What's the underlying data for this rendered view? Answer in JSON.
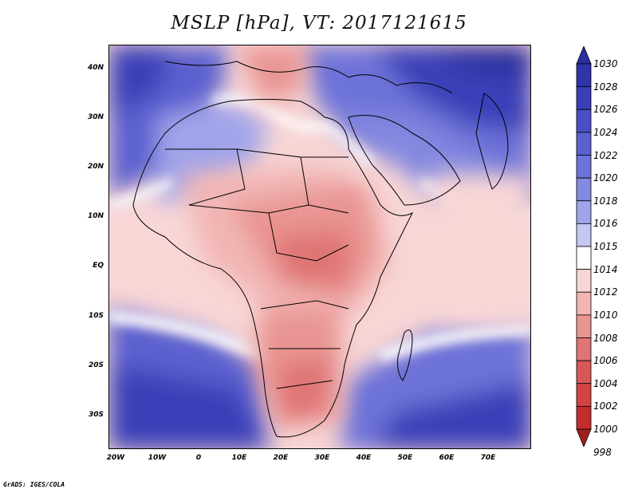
{
  "title": "MSLP [hPa], VT: 2017121615",
  "credit": "GrADS: IGES/COLA",
  "axes": {
    "x_ticks": [
      "20W",
      "10W",
      "0",
      "10E",
      "20E",
      "30E",
      "40E",
      "50E",
      "60E",
      "70E"
    ],
    "y_ticks": [
      "40N",
      "30N",
      "20N",
      "10N",
      "EQ",
      "10S",
      "20S",
      "30S"
    ]
  },
  "colorbar": {
    "levels": [
      "1030",
      "1028",
      "1026",
      "1024",
      "1022",
      "1020",
      "1018",
      "1016",
      "1015",
      "1014",
      "1012",
      "1010",
      "1008",
      "1006",
      "1004",
      "1002",
      "1000",
      "998"
    ],
    "colors": [
      "#2a2e9e",
      "#2f34a8",
      "#3a3fb8",
      "#4a4fc6",
      "#5b60cf",
      "#6d72d8",
      "#8388e0",
      "#a0a4ea",
      "#c4c7f3",
      "#ffffff",
      "#f8d6d6",
      "#f1b6b4",
      "#e99593",
      "#df7474",
      "#d85858",
      "#d34343",
      "#c52d2d",
      "#9e1f1f"
    ]
  }
}
